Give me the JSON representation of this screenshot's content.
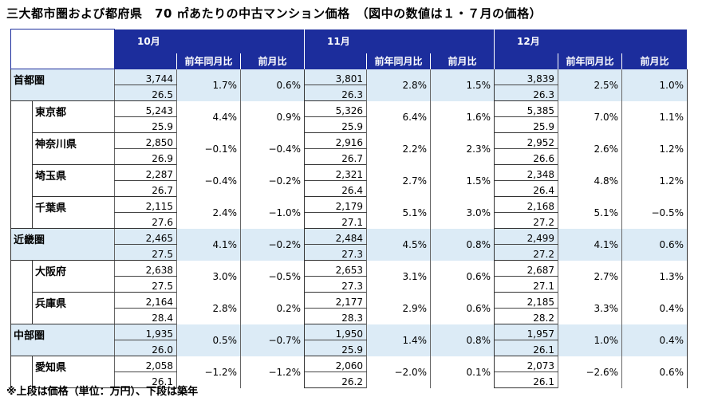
{
  "title": "三大都市圏および都府県　70 ㎡あたりの中古マンション価格　（図中の数値は１・７月の価格）",
  "footnote": "※上段は価格（単位：万円）、下段は築年",
  "months": [
    "10月",
    "11月",
    "12月"
  ],
  "sub_headers": {
    "yoy": "前年同月比",
    "mom": "前月比"
  },
  "rows": [
    {
      "name": "首都圏",
      "region": true,
      "m": [
        {
          "price": "3,744",
          "age": "26.5",
          "yoy": "1.7%",
          "mom": "0.6%"
        },
        {
          "price": "3,801",
          "age": "26.3",
          "yoy": "2.8%",
          "mom": "1.5%"
        },
        {
          "price": "3,839",
          "age": "26.3",
          "yoy": "2.5%",
          "mom": "1.0%"
        }
      ]
    },
    {
      "name": "東京都",
      "region": false,
      "m": [
        {
          "price": "5,243",
          "age": "25.9",
          "yoy": "4.4%",
          "mom": "0.9%"
        },
        {
          "price": "5,326",
          "age": "25.9",
          "yoy": "6.4%",
          "mom": "1.6%"
        },
        {
          "price": "5,385",
          "age": "25.9",
          "yoy": "7.0%",
          "mom": "1.1%"
        }
      ]
    },
    {
      "name": "神奈川県",
      "region": false,
      "m": [
        {
          "price": "2,850",
          "age": "26.9",
          "yoy": "−0.1%",
          "mom": "−0.4%"
        },
        {
          "price": "2,916",
          "age": "26.7",
          "yoy": "2.2%",
          "mom": "2.3%"
        },
        {
          "price": "2,952",
          "age": "26.6",
          "yoy": "2.6%",
          "mom": "1.2%"
        }
      ]
    },
    {
      "name": "埼玉県",
      "region": false,
      "m": [
        {
          "price": "2,287",
          "age": "26.7",
          "yoy": "−0.4%",
          "mom": "−0.2%"
        },
        {
          "price": "2,321",
          "age": "26.4",
          "yoy": "2.7%",
          "mom": "1.5%"
        },
        {
          "price": "2,348",
          "age": "26.4",
          "yoy": "4.8%",
          "mom": "1.2%"
        }
      ]
    },
    {
      "name": "千葉県",
      "region": false,
      "m": [
        {
          "price": "2,115",
          "age": "27.6",
          "yoy": "2.4%",
          "mom": "−1.0%"
        },
        {
          "price": "2,179",
          "age": "27.1",
          "yoy": "5.1%",
          "mom": "3.0%"
        },
        {
          "price": "2,168",
          "age": "27.2",
          "yoy": "5.1%",
          "mom": "−0.5%"
        }
      ]
    },
    {
      "name": "近畿圏",
      "region": true,
      "m": [
        {
          "price": "2,465",
          "age": "27.5",
          "yoy": "4.1%",
          "mom": "−0.2%"
        },
        {
          "price": "2,484",
          "age": "27.3",
          "yoy": "4.5%",
          "mom": "0.8%"
        },
        {
          "price": "2,499",
          "age": "27.2",
          "yoy": "4.1%",
          "mom": "0.6%"
        }
      ]
    },
    {
      "name": "大阪府",
      "region": false,
      "m": [
        {
          "price": "2,638",
          "age": "27.5",
          "yoy": "3.0%",
          "mom": "−0.5%"
        },
        {
          "price": "2,653",
          "age": "27.3",
          "yoy": "3.1%",
          "mom": "0.6%"
        },
        {
          "price": "2,687",
          "age": "27.1",
          "yoy": "2.7%",
          "mom": "1.3%"
        }
      ]
    },
    {
      "name": "兵庫県",
      "region": false,
      "m": [
        {
          "price": "2,164",
          "age": "28.4",
          "yoy": "2.8%",
          "mom": "0.2%"
        },
        {
          "price": "2,177",
          "age": "28.3",
          "yoy": "2.9%",
          "mom": "0.6%"
        },
        {
          "price": "2,185",
          "age": "28.2",
          "yoy": "3.3%",
          "mom": "0.4%"
        }
      ]
    },
    {
      "name": "中部圏",
      "region": true,
      "m": [
        {
          "price": "1,935",
          "age": "26.0",
          "yoy": "0.5%",
          "mom": "−0.7%"
        },
        {
          "price": "1,950",
          "age": "25.9",
          "yoy": "1.4%",
          "mom": "0.8%"
        },
        {
          "price": "1,957",
          "age": "26.1",
          "yoy": "1.0%",
          "mom": "0.4%"
        }
      ]
    },
    {
      "name": "愛知県",
      "region": false,
      "m": [
        {
          "price": "2,058",
          "age": "26.1",
          "yoy": "−1.2%",
          "mom": "−1.2%"
        },
        {
          "price": "2,060",
          "age": "26.2",
          "yoy": "−2.0%",
          "mom": "0.1%"
        },
        {
          "price": "2,073",
          "age": "26.1",
          "yoy": "−2.6%",
          "mom": "0.6%"
        }
      ]
    }
  ]
}
